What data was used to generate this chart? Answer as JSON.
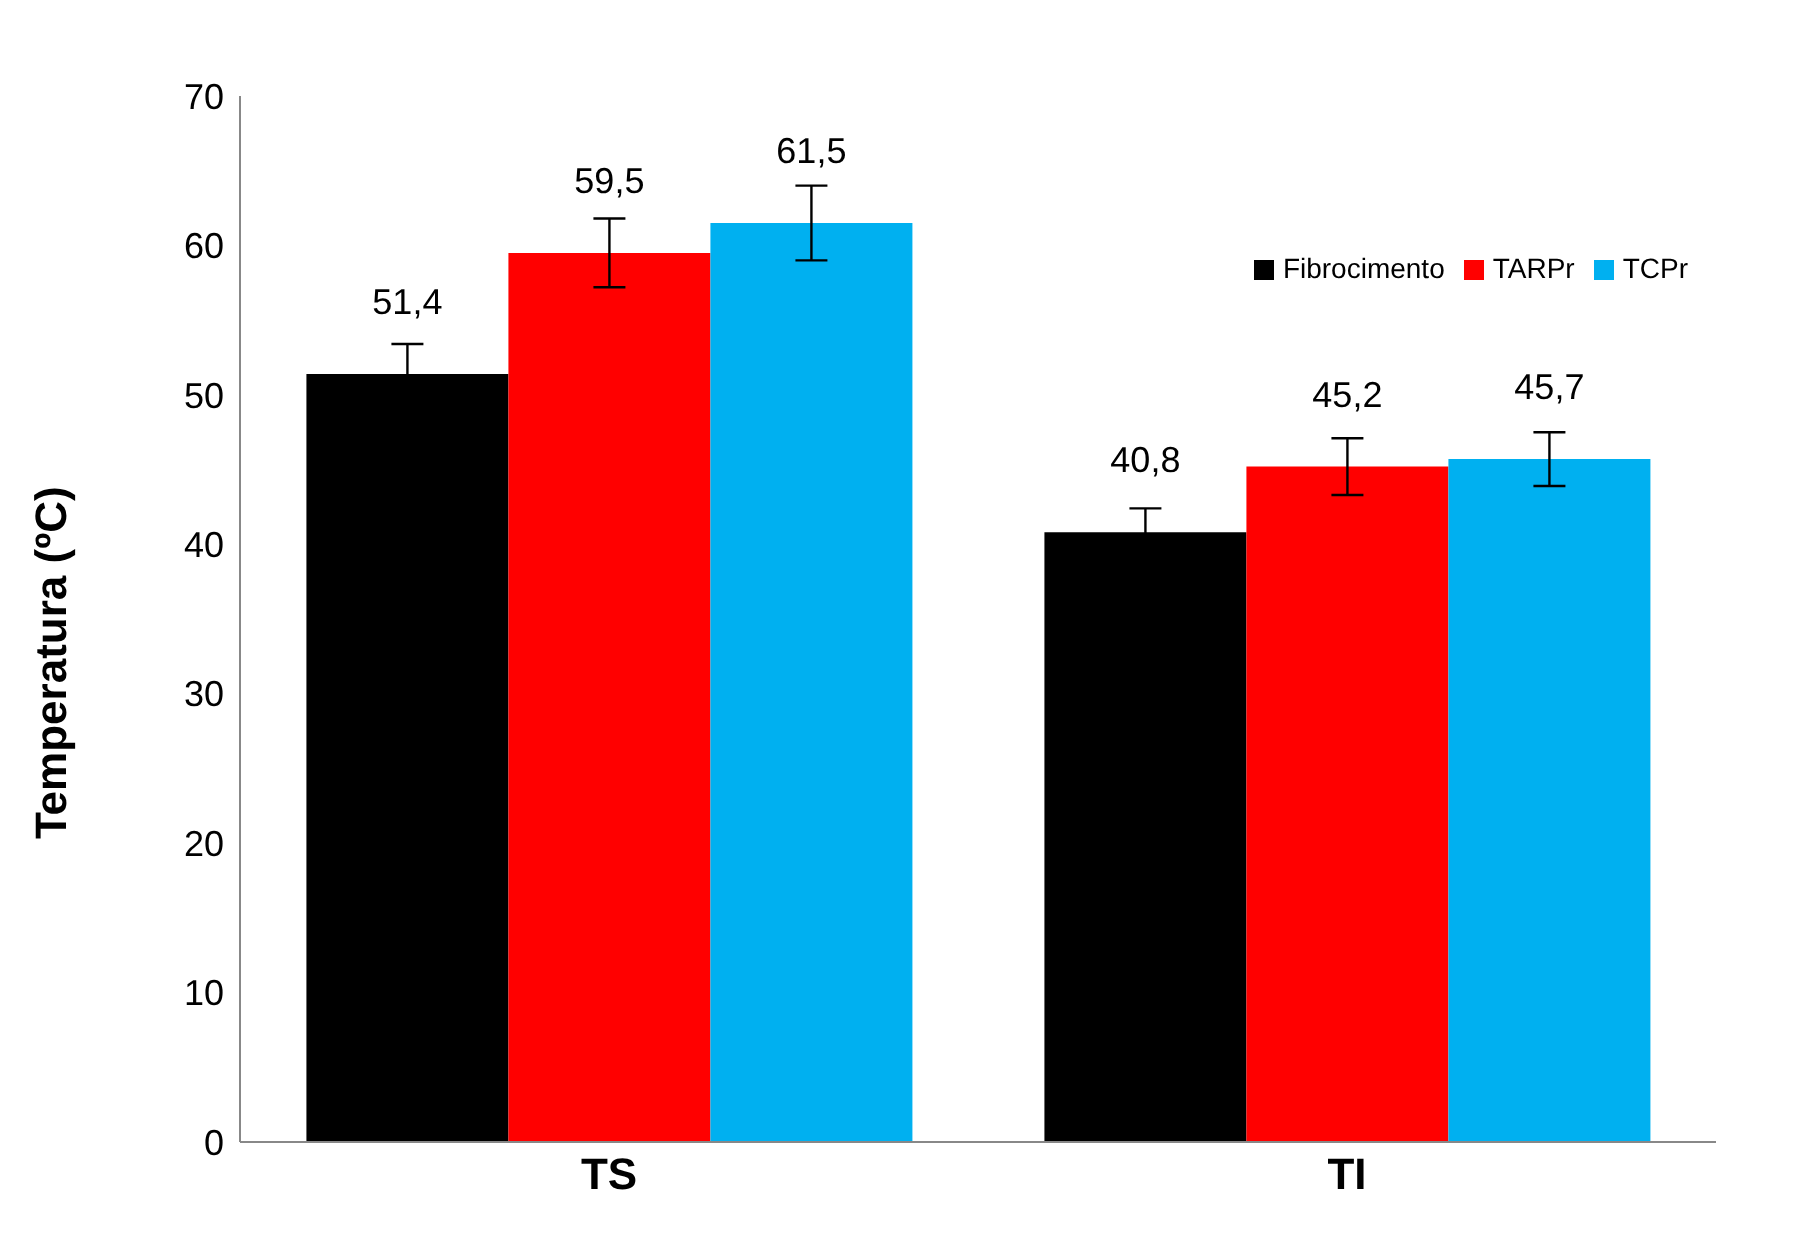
{
  "chart_data": {
    "type": "bar",
    "ylabel": "Temperatura (ºC)",
    "categories": [
      "TS",
      "TI"
    ],
    "series": [
      {
        "name": "Fibrocimento",
        "color": "#000000",
        "values": [
          51.4,
          40.8
        ],
        "errors": [
          2,
          1.6
        ],
        "value_labels": [
          "51,4",
          "40,8"
        ]
      },
      {
        "name": "TARPr",
        "color": "#ff0000",
        "values": [
          59.5,
          45.2
        ],
        "errors": [
          2.3,
          1.9
        ],
        "value_labels": [
          "59,5",
          "45,2"
        ]
      },
      {
        "name": "TCPr",
        "color": "#00b0f0",
        "values": [
          61.5,
          45.7
        ],
        "errors": [
          2.5,
          1.8
        ],
        "value_labels": [
          "61,5",
          "45,7"
        ]
      }
    ],
    "ylim": [
      0,
      70
    ],
    "yticks": [
      0,
      10,
      20,
      30,
      40,
      50,
      60,
      70
    ],
    "grid": false,
    "legend": "top right"
  }
}
